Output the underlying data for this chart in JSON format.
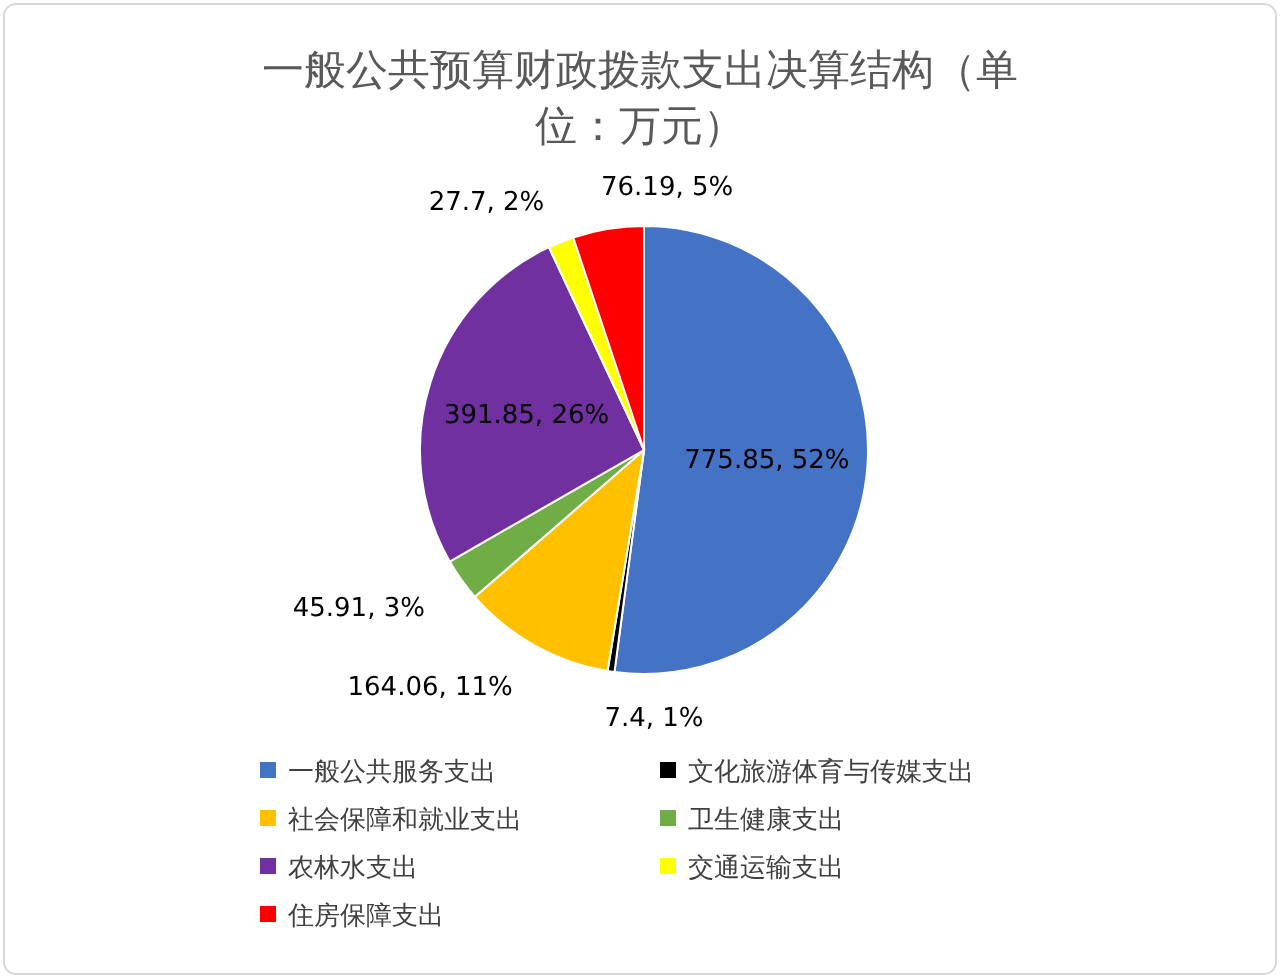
{
  "chart_data": {
    "type": "pie",
    "title": "一般公共预算财政拨款支出决算结构（单位：万元）",
    "categories": [
      "一般公共服务支出",
      "文化旅游体育与传媒支出",
      "社会保障和就业支出",
      "卫生健康支出",
      "农林水支出",
      "交通运输支出",
      "住房保障支出"
    ],
    "values": [
      775.85,
      7.4,
      164.06,
      45.91,
      391.85,
      27.7,
      76.19
    ],
    "colors": [
      "#4472c4",
      "#000000",
      "#ffc000",
      "#70ad47",
      "#7030a0",
      "#ffff00",
      "#ff0000"
    ],
    "value_labels": [
      "775.85, 52%",
      "7.4, 1%",
      "164.06, 11%",
      "45.91, 3%",
      "391.85, 26%",
      "27.7, 2%",
      "76.19, 5%"
    ],
    "legend": "bottom"
  }
}
